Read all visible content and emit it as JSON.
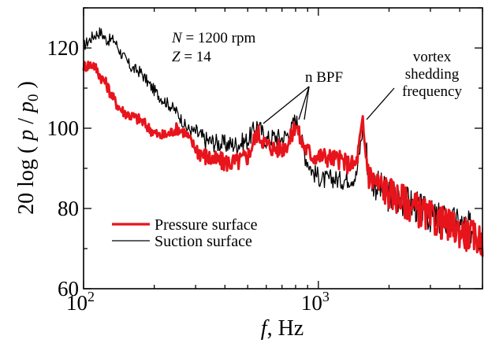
{
  "chart_data": {
    "type": "line",
    "x_scale": "log",
    "xlim": [
      100,
      5000
    ],
    "ylim": [
      60,
      130
    ],
    "grid": false,
    "legend_position": "bottom-left",
    "x_ticks": [
      {
        "value": 100,
        "base": "10",
        "exp": "2"
      },
      {
        "value": 1000,
        "base": "10",
        "exp": "3"
      }
    ],
    "y_ticks": [
      {
        "value": 60,
        "label": "60"
      },
      {
        "value": 80,
        "label": "80"
      },
      {
        "value": 100,
        "label": "100"
      },
      {
        "value": 120,
        "label": "120"
      }
    ],
    "xlabel": {
      "italic": "f",
      "rest": ", Hz"
    },
    "ylabel": {
      "prefix": "20 log ( ",
      "p": "p",
      "slash": " / ",
      "p0": "p",
      "sub": "0",
      "suffix": " )"
    },
    "params": [
      {
        "symbol": "N",
        "text": " = 1200 rpm"
      },
      {
        "symbol": "Z",
        "text": " = 14"
      }
    ],
    "annotations": {
      "nbpf": "n BPF",
      "vortex": [
        "vortex",
        "shedding",
        "frequency"
      ]
    },
    "series": [
      {
        "name": "Suction surface",
        "color": "#000000",
        "peaks": [
          [
            100,
            120.5
          ],
          [
            110,
            123
          ],
          [
            118,
            124
          ],
          [
            125,
            122
          ],
          [
            135,
            122
          ],
          [
            145,
            118.5
          ],
          [
            160,
            115
          ],
          [
            175,
            114
          ],
          [
            190,
            111
          ],
          [
            210,
            108
          ],
          [
            230,
            106
          ],
          [
            250,
            104
          ],
          [
            275,
            100
          ],
          [
            300,
            99
          ],
          [
            330,
            97
          ],
          [
            360,
            96.5
          ],
          [
            400,
            96
          ],
          [
            450,
            96
          ],
          [
            500,
            97
          ],
          [
            550,
            101
          ],
          [
            600,
            97
          ],
          [
            650,
            98
          ],
          [
            700,
            97.5
          ],
          [
            760,
            99
          ],
          [
            800,
            102.5
          ],
          [
            840,
            98
          ],
          [
            880,
            93
          ],
          [
            950,
            89
          ],
          [
            1050,
            87
          ],
          [
            1150,
            87.5
          ],
          [
            1250,
            87
          ],
          [
            1350,
            87.5
          ],
          [
            1450,
            88
          ],
          [
            1545,
            100
          ],
          [
            1580,
            97
          ],
          [
            1650,
            88
          ],
          [
            1800,
            85.5
          ],
          [
            2000,
            83
          ],
          [
            2300,
            82
          ],
          [
            2600,
            80.5
          ],
          [
            3000,
            78
          ],
          [
            3500,
            77
          ],
          [
            4000,
            76
          ],
          [
            4500,
            75
          ],
          [
            5000,
            74
          ]
        ],
        "noise": 3
      },
      {
        "name": "Pressure surface",
        "color": "#e8141c",
        "peaks": [
          [
            100,
            115.5
          ],
          [
            110,
            116
          ],
          [
            118,
            113
          ],
          [
            125,
            111
          ],
          [
            135,
            107
          ],
          [
            145,
            104.5
          ],
          [
            160,
            103
          ],
          [
            175,
            102
          ],
          [
            190,
            100
          ],
          [
            210,
            98
          ],
          [
            230,
            98.5
          ],
          [
            250,
            100
          ],
          [
            270,
            99
          ],
          [
            300,
            95
          ],
          [
            330,
            93
          ],
          [
            360,
            92
          ],
          [
            400,
            91.5
          ],
          [
            450,
            91.5
          ],
          [
            500,
            93
          ],
          [
            550,
            99
          ],
          [
            600,
            96
          ],
          [
            650,
            95
          ],
          [
            700,
            95
          ],
          [
            760,
            97
          ],
          [
            800,
            101.5
          ],
          [
            840,
            97
          ],
          [
            880,
            95
          ],
          [
            950,
            93
          ],
          [
            1050,
            93
          ],
          [
            1150,
            92.5
          ],
          [
            1250,
            92
          ],
          [
            1350,
            91
          ],
          [
            1450,
            91
          ],
          [
            1545,
            101.5
          ],
          [
            1580,
            95
          ],
          [
            1650,
            88
          ],
          [
            1800,
            86
          ],
          [
            2000,
            84
          ],
          [
            2300,
            82
          ],
          [
            2600,
            80
          ],
          [
            3000,
            77.5
          ],
          [
            3500,
            76
          ],
          [
            4000,
            74.5
          ],
          [
            4500,
            73
          ],
          [
            5000,
            72
          ]
        ],
        "noise": 3
      }
    ]
  }
}
